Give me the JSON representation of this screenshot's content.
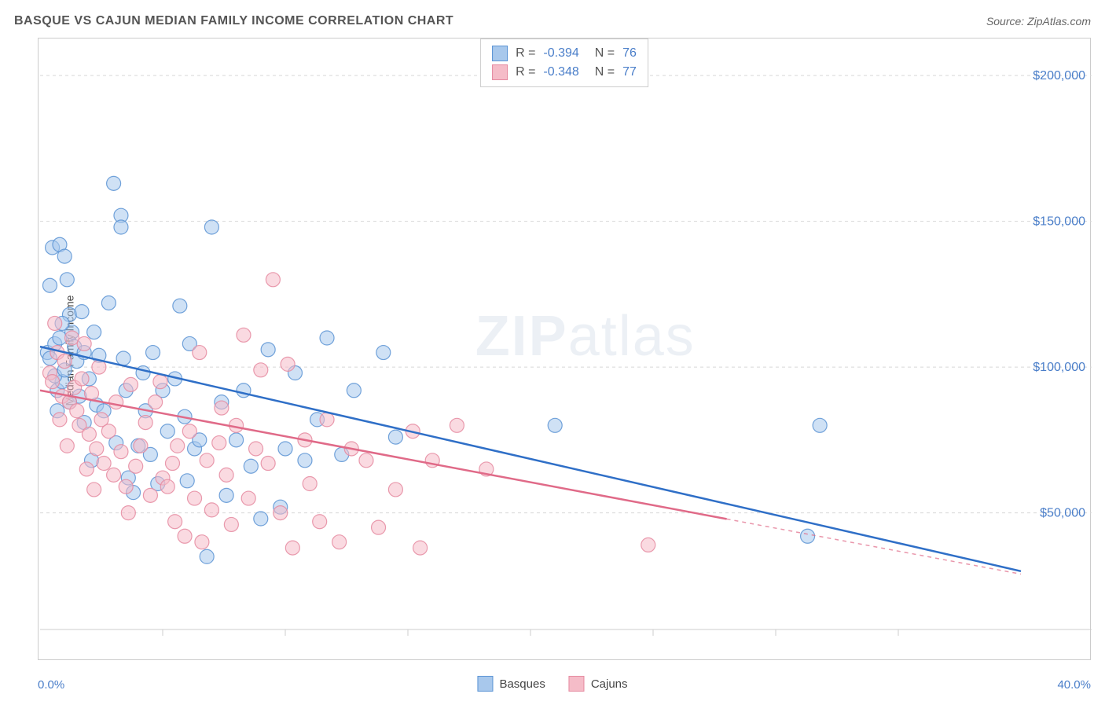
{
  "header": {
    "title": "BASQUE VS CAJUN MEDIAN FAMILY INCOME CORRELATION CHART",
    "source": "Source: ZipAtlas.com"
  },
  "watermark": {
    "bold": "ZIP",
    "rest": "atlas"
  },
  "chart": {
    "type": "scatter",
    "ylabel": "Median Family Income",
    "background_color": "#ffffff",
    "grid_color": "#d8d8d8",
    "axis_color": "#cccccc",
    "xlim": [
      0,
      40
    ],
    "ylim": [
      10000,
      210000
    ],
    "x_axis_labels": {
      "left": "0.0%",
      "right": "40.0%"
    },
    "y_ticks": [
      50000,
      100000,
      150000,
      200000
    ],
    "y_tick_labels": [
      "$50,000",
      "$100,000",
      "$150,000",
      "$200,000"
    ],
    "y_tick_color": "#4a7ec9",
    "x_minor_ticks": [
      5,
      10,
      15,
      20,
      25,
      30,
      35
    ],
    "marker_radius": 9,
    "marker_opacity": 0.55,
    "marker_stroke_opacity": 0.85,
    "trend_line_width": 2.5,
    "series": [
      {
        "name": "Basques",
        "color_fill": "#a8c8ec",
        "color_stroke": "#5a93d4",
        "trend_color": "#2f6fc7",
        "R": "-0.394",
        "N": "76",
        "trend": {
          "x1": 0,
          "y1": 107000,
          "x2": 40,
          "y2": 30000,
          "dashed_from_x": null
        },
        "data": [
          [
            0.3,
            105000
          ],
          [
            0.4,
            103000
          ],
          [
            0.6,
            108000
          ],
          [
            0.7,
            92000
          ],
          [
            0.8,
            110000
          ],
          [
            0.9,
            95000
          ],
          [
            0.5,
            141000
          ],
          [
            0.8,
            142000
          ],
          [
            1.0,
            138000
          ],
          [
            1.2,
            118000
          ],
          [
            1.1,
            130000
          ],
          [
            1.4,
            107000
          ],
          [
            0.6,
            97000
          ],
          [
            1.0,
            99000
          ],
          [
            1.3,
            112000
          ],
          [
            1.5,
            102000
          ],
          [
            1.6,
            90000
          ],
          [
            1.7,
            119000
          ],
          [
            1.8,
            105000
          ],
          [
            2.0,
            96000
          ],
          [
            2.2,
            112000
          ],
          [
            2.3,
            87000
          ],
          [
            2.4,
            104000
          ],
          [
            2.6,
            85000
          ],
          [
            2.8,
            122000
          ],
          [
            3.0,
            163000
          ],
          [
            3.3,
            152000
          ],
          [
            3.3,
            148000
          ],
          [
            3.4,
            103000
          ],
          [
            3.5,
            92000
          ],
          [
            3.6,
            62000
          ],
          [
            3.8,
            57000
          ],
          [
            4.0,
            73000
          ],
          [
            4.3,
            85000
          ],
          [
            4.5,
            70000
          ],
          [
            4.6,
            105000
          ],
          [
            4.8,
            60000
          ],
          [
            5.0,
            92000
          ],
          [
            5.2,
            78000
          ],
          [
            5.5,
            96000
          ],
          [
            5.7,
            121000
          ],
          [
            5.9,
            83000
          ],
          [
            6.1,
            108000
          ],
          [
            6.3,
            72000
          ],
          [
            6.5,
            75000
          ],
          [
            6.8,
            35000
          ],
          [
            7.0,
            148000
          ],
          [
            7.4,
            88000
          ],
          [
            7.6,
            56000
          ],
          [
            8.0,
            75000
          ],
          [
            8.3,
            92000
          ],
          [
            8.6,
            66000
          ],
          [
            9.0,
            48000
          ],
          [
            9.3,
            106000
          ],
          [
            9.8,
            52000
          ],
          [
            10.0,
            72000
          ],
          [
            10.4,
            98000
          ],
          [
            10.8,
            68000
          ],
          [
            11.3,
            82000
          ],
          [
            11.7,
            110000
          ],
          [
            12.3,
            70000
          ],
          [
            12.8,
            92000
          ],
          [
            14.0,
            105000
          ],
          [
            14.5,
            76000
          ],
          [
            21.0,
            80000
          ],
          [
            31.3,
            42000
          ],
          [
            31.8,
            80000
          ],
          [
            1.2,
            88000
          ],
          [
            2.1,
            68000
          ],
          [
            0.9,
            115000
          ],
          [
            1.8,
            81000
          ],
          [
            0.4,
            128000
          ],
          [
            3.1,
            74000
          ],
          [
            6.0,
            61000
          ],
          [
            4.2,
            98000
          ],
          [
            0.7,
            85000
          ]
        ]
      },
      {
        "name": "Cajuns",
        "color_fill": "#f5bcc8",
        "color_stroke": "#e58aa0",
        "trend_color": "#e06a88",
        "R": "-0.348",
        "N": "77",
        "trend": {
          "x1": 0,
          "y1": 92000,
          "x2": 40,
          "y2": 29000,
          "dashed_from_x": 28
        },
        "data": [
          [
            0.4,
            98000
          ],
          [
            0.5,
            95000
          ],
          [
            0.7,
            105000
          ],
          [
            0.9,
            90000
          ],
          [
            1.0,
            102000
          ],
          [
            1.2,
            88000
          ],
          [
            1.3,
            110000
          ],
          [
            1.4,
            93000
          ],
          [
            1.5,
            85000
          ],
          [
            1.6,
            80000
          ],
          [
            1.7,
            96000
          ],
          [
            1.8,
            108000
          ],
          [
            2.0,
            77000
          ],
          [
            2.1,
            91000
          ],
          [
            2.3,
            72000
          ],
          [
            2.4,
            100000
          ],
          [
            2.5,
            82000
          ],
          [
            2.6,
            67000
          ],
          [
            2.8,
            78000
          ],
          [
            3.0,
            63000
          ],
          [
            3.1,
            88000
          ],
          [
            3.3,
            71000
          ],
          [
            3.5,
            59000
          ],
          [
            3.7,
            94000
          ],
          [
            3.9,
            66000
          ],
          [
            4.1,
            73000
          ],
          [
            4.3,
            81000
          ],
          [
            4.5,
            56000
          ],
          [
            4.7,
            88000
          ],
          [
            5.0,
            62000
          ],
          [
            5.2,
            59000
          ],
          [
            5.4,
            67000
          ],
          [
            5.6,
            73000
          ],
          [
            5.9,
            42000
          ],
          [
            6.1,
            78000
          ],
          [
            6.3,
            55000
          ],
          [
            6.5,
            105000
          ],
          [
            6.6,
            40000
          ],
          [
            6.8,
            68000
          ],
          [
            7.0,
            51000
          ],
          [
            7.3,
            74000
          ],
          [
            7.6,
            63000
          ],
          [
            7.8,
            46000
          ],
          [
            8.0,
            80000
          ],
          [
            8.3,
            111000
          ],
          [
            8.5,
            55000
          ],
          [
            8.8,
            72000
          ],
          [
            9.0,
            99000
          ],
          [
            9.3,
            67000
          ],
          [
            9.5,
            130000
          ],
          [
            9.8,
            50000
          ],
          [
            10.1,
            101000
          ],
          [
            10.3,
            38000
          ],
          [
            10.8,
            75000
          ],
          [
            11.0,
            60000
          ],
          [
            11.4,
            47000
          ],
          [
            11.7,
            82000
          ],
          [
            12.2,
            40000
          ],
          [
            12.7,
            72000
          ],
          [
            13.3,
            68000
          ],
          [
            13.8,
            45000
          ],
          [
            14.5,
            58000
          ],
          [
            15.2,
            78000
          ],
          [
            15.5,
            38000
          ],
          [
            16.0,
            68000
          ],
          [
            17.0,
            80000
          ],
          [
            18.2,
            65000
          ],
          [
            24.8,
            39000
          ],
          [
            1.1,
            73000
          ],
          [
            2.2,
            58000
          ],
          [
            0.8,
            82000
          ],
          [
            3.6,
            50000
          ],
          [
            5.5,
            47000
          ],
          [
            7.4,
            86000
          ],
          [
            4.9,
            95000
          ],
          [
            1.9,
            65000
          ],
          [
            0.6,
            115000
          ]
        ]
      }
    ]
  },
  "legend": {
    "items": [
      {
        "label": "Basques",
        "swatch": "#a8c8ec",
        "border": "#5a93d4"
      },
      {
        "label": "Cajuns",
        "swatch": "#f5bcc8",
        "border": "#e58aa0"
      }
    ]
  }
}
